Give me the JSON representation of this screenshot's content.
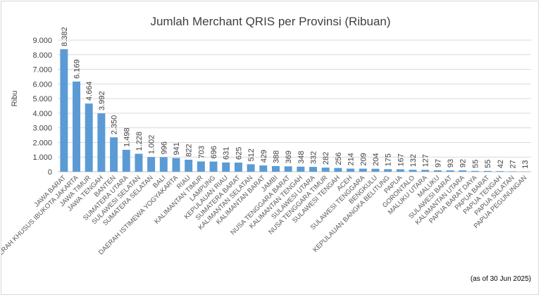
{
  "chart_data": {
    "type": "bar",
    "title": "Jumlah Merchant QRIS per Provinsi  (Ribuan)",
    "xlabel": "",
    "ylabel": "Ribu",
    "ylim": [
      0,
      9000
    ],
    "yticks": [
      "0",
      "1.000",
      "2.000",
      "3.000",
      "4.000",
      "5.000",
      "6.000",
      "7.000",
      "8.000",
      "9.000"
    ],
    "grid": true,
    "legend": "none",
    "bar_color": "#5b9bd5",
    "categories": [
      "JAWA BARAT",
      "DAERAH KHUSUS IBUKOTA JAKARTA",
      "JAWA TIMUR",
      "JAWA TENGAH",
      "BANTEN",
      "SUMATERA UTARA",
      "SULAWESI SELATAN",
      "SUMATERA SELATAN",
      "BALI",
      "DAERAH ISTIMEWA YOGYAKARTA",
      "RIAU",
      "KALIMANTAN TIMUR",
      "LAMPUNG",
      "KEPULAUAN RIAU",
      "SUMATERA BARAT",
      "KALIMANTAN SELATAN",
      "KALIMANTAN BARAT",
      "JAMBI",
      "NUSA TENGGARA BARAT",
      "KALIMANTAN TENGAH",
      "SULAWESI UTARA",
      "NUSA TENGGARA TIMUR",
      "SULAWESI TENGAH",
      "ACEH",
      "SULAWESI TENGGARA",
      "BENGKULU",
      "KEPULAUAN BANGKA BELITUNG",
      "PAPUA",
      "GORONTALO",
      "MALUKU UTARA",
      "MALUKU",
      "SULAWESI BARAT",
      "KALIMANTAN UTARA",
      "PAPUA BARAT DAYA",
      "PAPUA BARAT",
      "PAPUA TENGAH",
      "PAPUA SELATAN",
      "PAPUA PEGUNUNGAN"
    ],
    "values": [
      8382,
      6169,
      4664,
      3992,
      2350,
      1498,
      1228,
      1002,
      996,
      941,
      822,
      703,
      696,
      631,
      625,
      512,
      429,
      388,
      369,
      348,
      332,
      282,
      256,
      214,
      209,
      204,
      175,
      167,
      132,
      127,
      97,
      93,
      92,
      55,
      55,
      42,
      27,
      13
    ],
    "value_labels": [
      "8.382",
      "6.169",
      "4.664",
      "3.992",
      "2.350",
      "1.498",
      "1.228",
      "1.002",
      "996",
      "941",
      "822",
      "703",
      "696",
      "631",
      "625",
      "512",
      "429",
      "388",
      "369",
      "348",
      "332",
      "282",
      "256",
      "214",
      "209",
      "204",
      "175",
      "167",
      "132",
      "127",
      "97",
      "93",
      "92",
      "55",
      "55",
      "42",
      "27",
      "13"
    ],
    "annotation": "(as of 30 Jun 2025)"
  }
}
